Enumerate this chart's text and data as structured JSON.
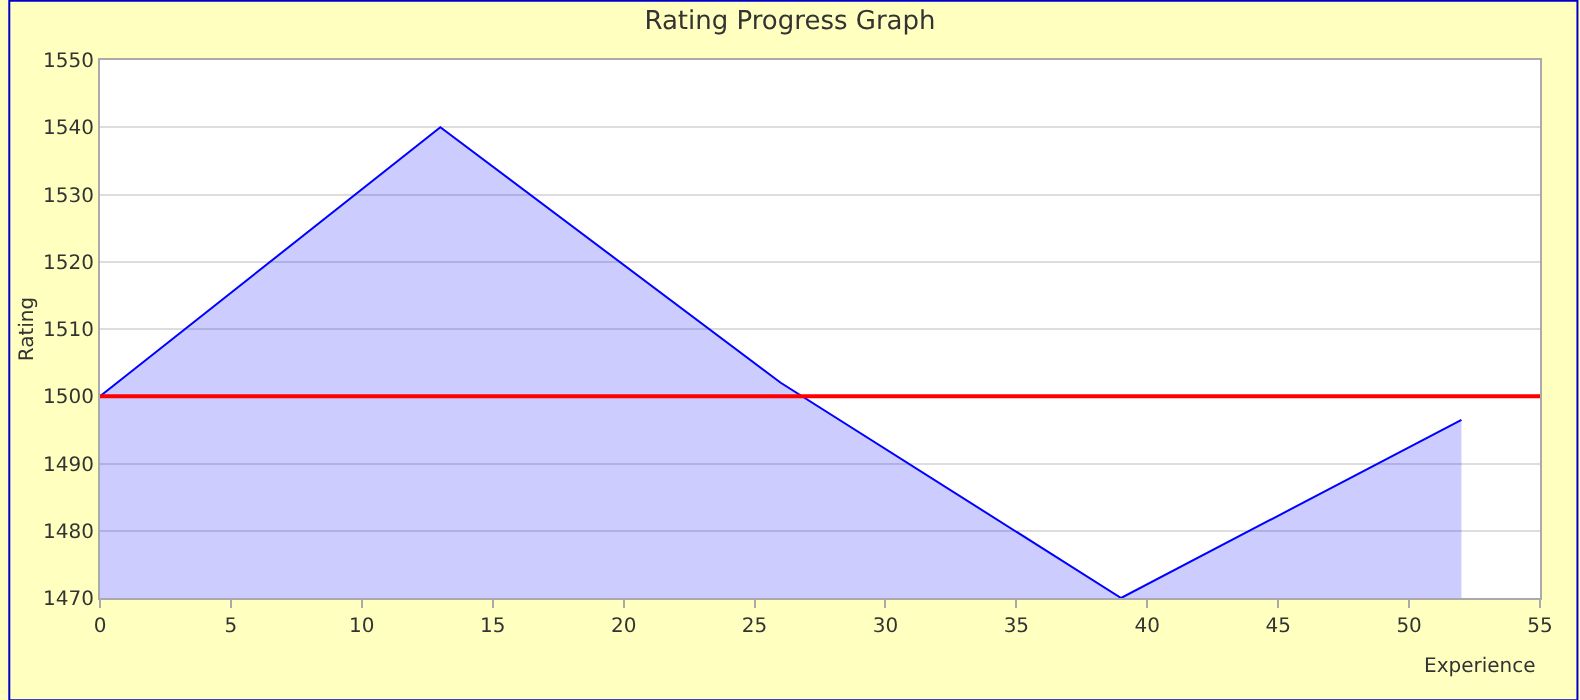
{
  "chart_data": {
    "type": "area",
    "title": "Rating Progress Graph",
    "xlabel": "Experience",
    "ylabel": "Rating",
    "x": [
      0,
      13,
      26,
      39,
      52
    ],
    "series": [
      {
        "color": "#0000ff",
        "values": [
          1500,
          1540,
          1502,
          1470,
          1496.5
        ]
      }
    ],
    "xlim": [
      0,
      55
    ],
    "xticks": [
      0,
      5,
      10,
      15,
      20,
      25,
      30,
      35,
      40,
      45,
      50,
      55
    ],
    "ylim": [
      1470,
      1550
    ],
    "yticks": [
      1470,
      1480,
      1490,
      1500,
      1510,
      1520,
      1530,
      1540,
      1550
    ],
    "ref_lines": [
      {
        "axis": "y",
        "value": 1500,
        "color": "#ff0000"
      }
    ],
    "grid": "y",
    "marker": "none",
    "line_style": "solid"
  }
}
